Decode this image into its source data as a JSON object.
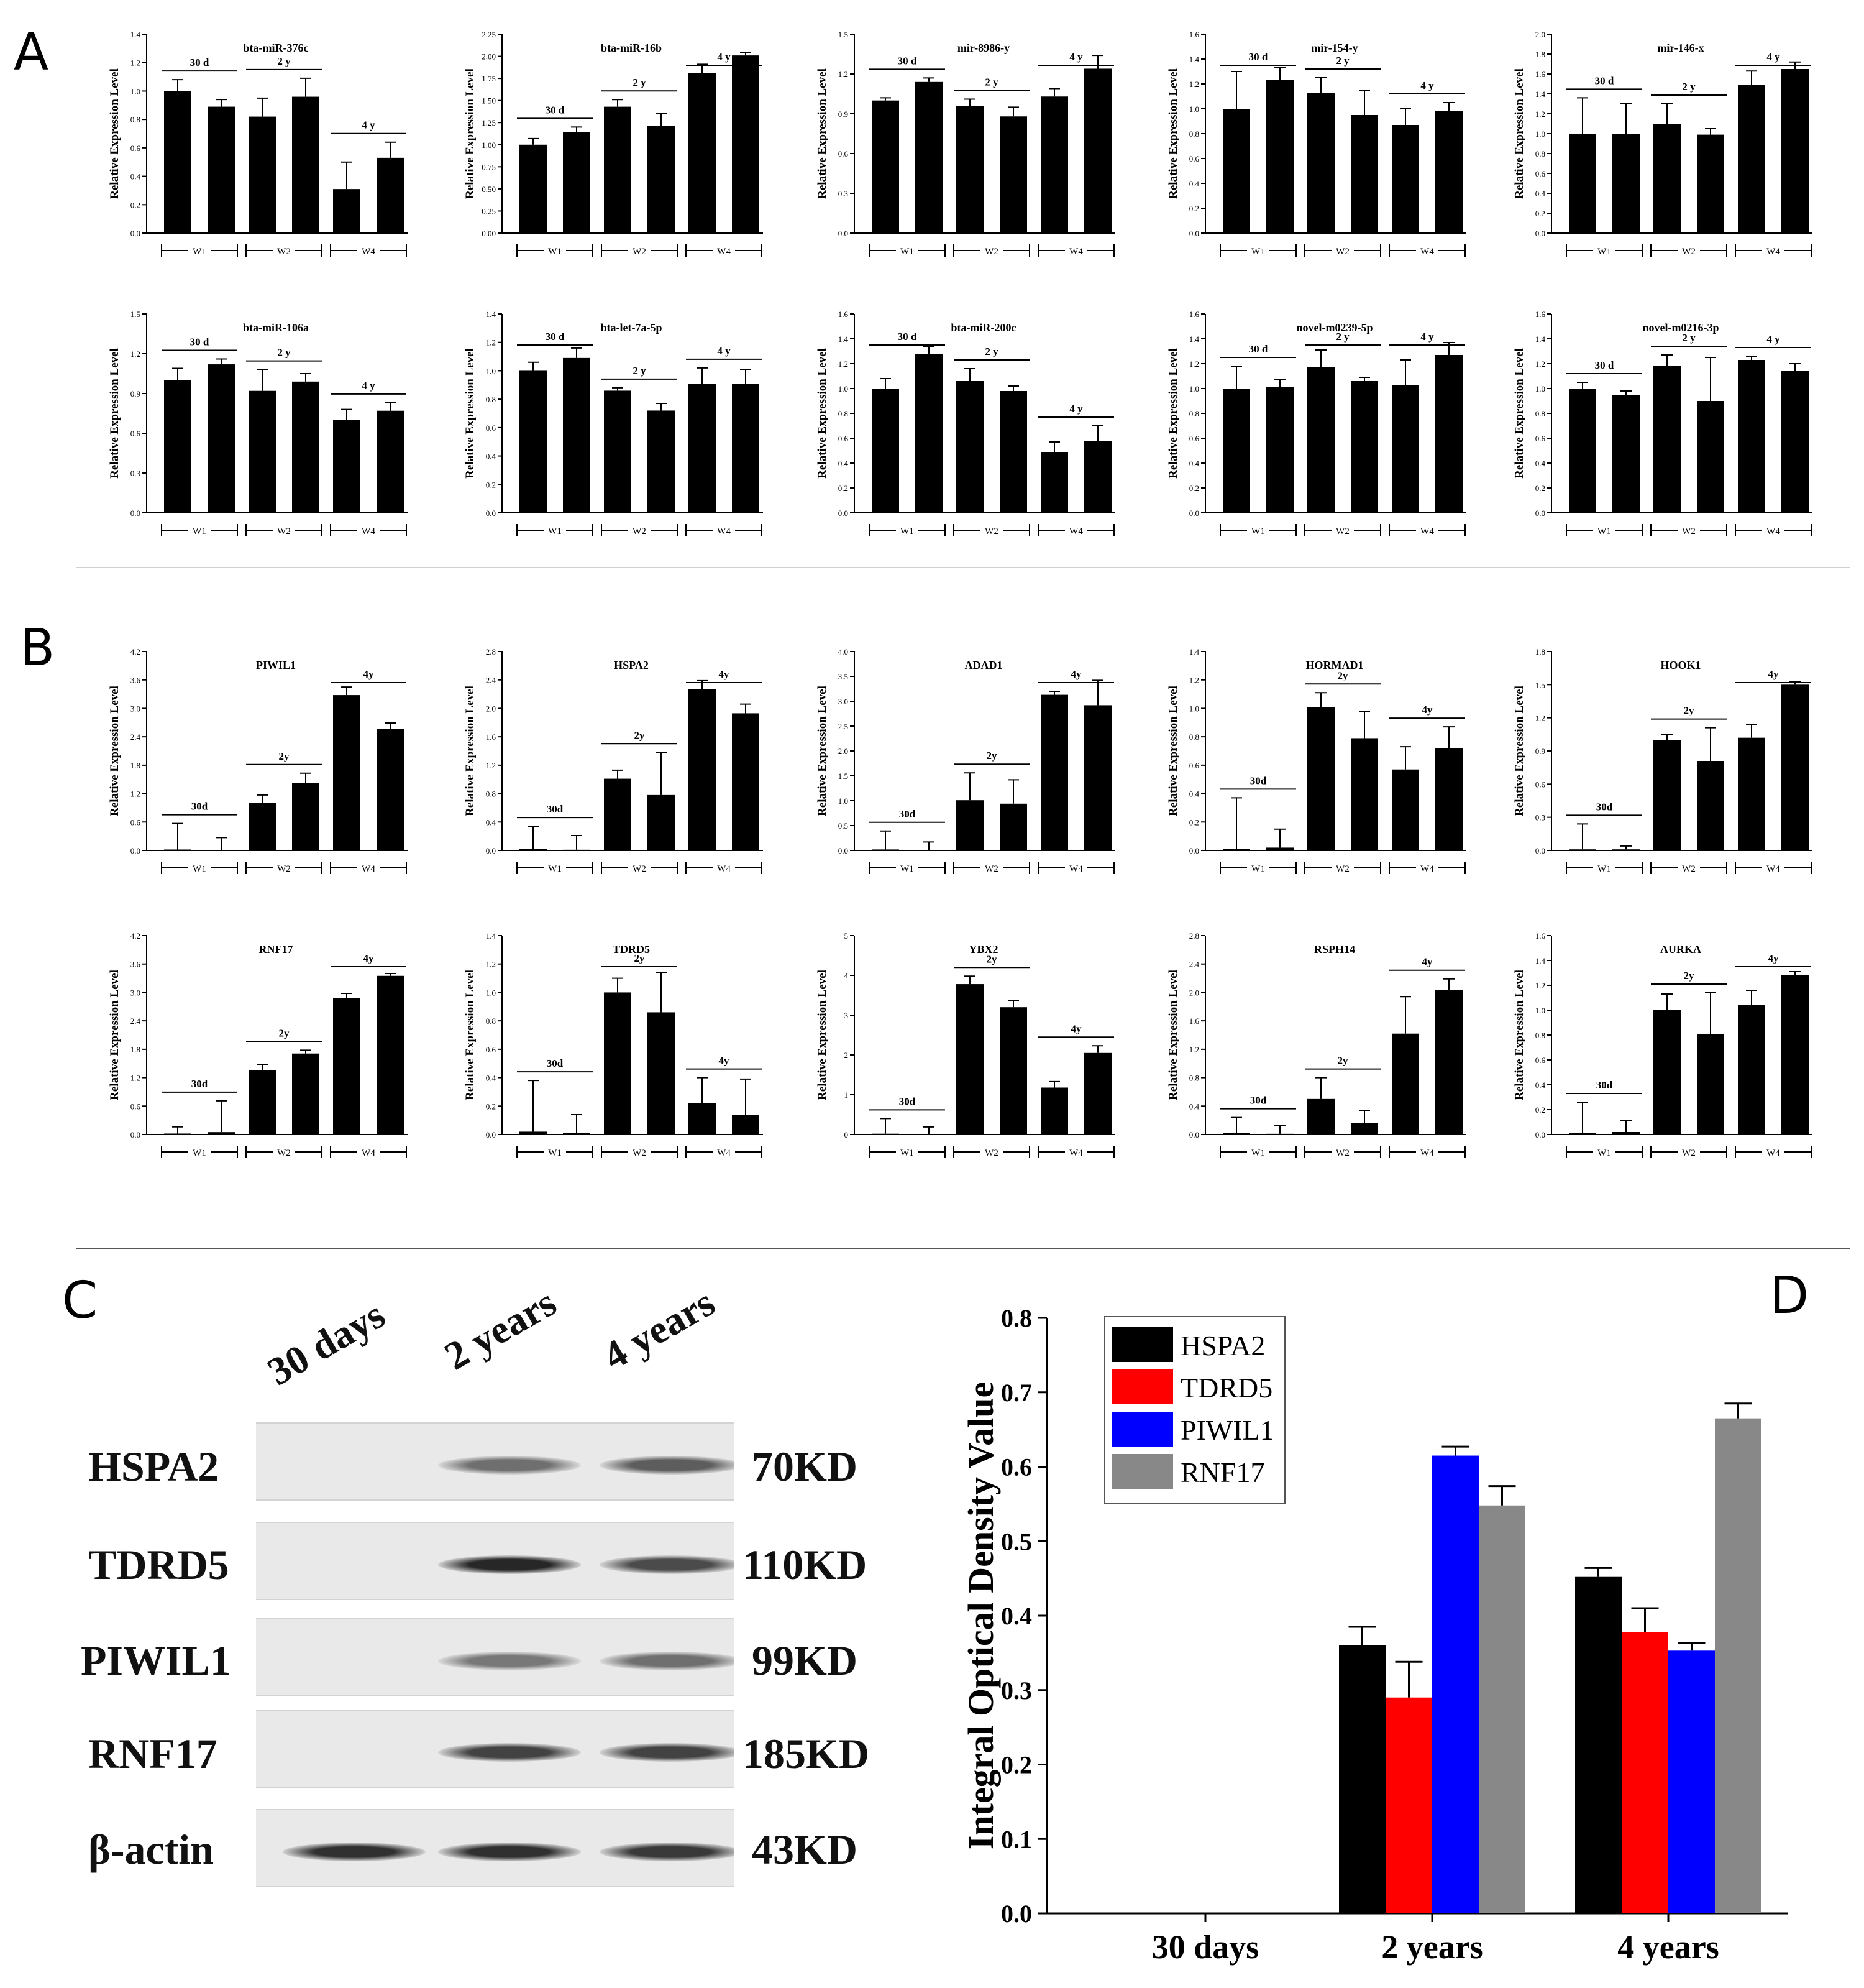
{
  "panels": {
    "a": "A",
    "b": "B",
    "c": "C",
    "d": "D"
  },
  "axis_ylabel": "Relative Expression Level",
  "chart_data": [
    {
      "type": "bar",
      "name": "bta-miR-376c",
      "title": "bta-miR-376c",
      "values": [
        1.0,
        0.89,
        0.82,
        0.96,
        0.31,
        0.53
      ],
      "errors": [
        0.08,
        0.05,
        0.13,
        0.13,
        0.19,
        0.11
      ],
      "ylim": [
        0,
        1.4
      ],
      "yticks": [
        "0.0",
        "0.2",
        "0.4",
        "0.6",
        "0.8",
        "1.0",
        "1.2",
        "1.4"
      ],
      "groups": [
        "30 d",
        "2 y",
        "4 y"
      ],
      "weeks": [
        "W1",
        "W2",
        "W4"
      ]
    },
    {
      "type": "bar",
      "name": "bta-miR-16b",
      "title": "bta-miR-16b",
      "values": [
        1.0,
        1.14,
        1.43,
        1.21,
        1.81,
        2.01
      ],
      "errors": [
        0.07,
        0.06,
        0.08,
        0.14,
        0.1,
        0.03
      ],
      "ylim": [
        0,
        2.25
      ],
      "yticks": [
        "0.00",
        "0.25",
        "0.50",
        "0.75",
        "1.00",
        "1.25",
        "1.50",
        "1.75",
        "2.00",
        "2.25"
      ],
      "groups": [
        "30 d",
        "2 y",
        "4 y"
      ],
      "weeks": [
        "W1",
        "W2",
        "W4"
      ]
    },
    {
      "type": "bar",
      "name": "mir-8986-y",
      "title": "mir-8986-y",
      "values": [
        1.0,
        1.14,
        0.96,
        0.88,
        1.03,
        1.24
      ],
      "errors": [
        0.02,
        0.03,
        0.05,
        0.07,
        0.06,
        0.1
      ],
      "ylim": [
        0,
        1.5
      ],
      "yticks": [
        "0.0",
        "0.3",
        "0.6",
        "0.9",
        "1.2",
        "1.5"
      ],
      "groups": [
        "30 d",
        "2 y",
        "4 y"
      ],
      "weeks": [
        "W1",
        "W2",
        "W4"
      ]
    },
    {
      "type": "bar",
      "name": "mir-154-y",
      "title": "mir-154-y",
      "values": [
        1.0,
        1.23,
        1.13,
        0.95,
        0.87,
        0.98
      ],
      "errors": [
        0.3,
        0.1,
        0.12,
        0.2,
        0.13,
        0.07
      ],
      "ylim": [
        0,
        1.6
      ],
      "yticks": [
        "0.0",
        "0.2",
        "0.4",
        "0.6",
        "0.8",
        "1.0",
        "1.2",
        "1.4",
        "1.6"
      ],
      "groups": [
        "30 d",
        "2 y",
        "4 y"
      ],
      "weeks": [
        "W1",
        "W2",
        "W4"
      ]
    },
    {
      "type": "bar",
      "name": "mir-146-x",
      "title": "mir-146-x",
      "values": [
        1.0,
        1.0,
        1.1,
        0.99,
        1.49,
        1.65
      ],
      "errors": [
        0.36,
        0.3,
        0.2,
        0.06,
        0.14,
        0.07
      ],
      "ylim": [
        0,
        2.0
      ],
      "yticks": [
        "0.0",
        "0.2",
        "0.4",
        "0.6",
        "0.8",
        "1.0",
        "1.2",
        "1.4",
        "1.6",
        "1.8",
        "2.0"
      ],
      "groups": [
        "30 d",
        "2 y",
        "4 y"
      ],
      "weeks": [
        "W1",
        "W2",
        "W4"
      ]
    },
    {
      "type": "bar",
      "name": "bta-miR-106a",
      "title": "bta-miR-106a",
      "values": [
        1.0,
        1.12,
        0.92,
        0.99,
        0.7,
        0.77
      ],
      "errors": [
        0.09,
        0.04,
        0.16,
        0.06,
        0.08,
        0.06
      ],
      "ylim": [
        0,
        1.5
      ],
      "yticks": [
        "0.0",
        "0.3",
        "0.6",
        "0.9",
        "1.2",
        "1.5"
      ],
      "groups": [
        "30 d",
        "2 y",
        "4 y"
      ],
      "weeks": [
        "W1",
        "W2",
        "W4"
      ]
    },
    {
      "type": "bar",
      "name": "bta-let-7a-5p",
      "title": "bta-let-7a-5p",
      "values": [
        1.0,
        1.09,
        0.86,
        0.72,
        0.91,
        0.91
      ],
      "errors": [
        0.06,
        0.07,
        0.02,
        0.05,
        0.11,
        0.1
      ],
      "ylim": [
        0,
        1.4
      ],
      "yticks": [
        "0.0",
        "0.2",
        "0.4",
        "0.6",
        "0.8",
        "1.0",
        "1.2",
        "1.4"
      ],
      "groups": [
        "30 d",
        "2 y",
        "4 y"
      ],
      "weeks": [
        "W1",
        "W2",
        "W4"
      ]
    },
    {
      "type": "bar",
      "name": "bta-miR-200c",
      "title": "bta-miR-200c",
      "values": [
        1.0,
        1.28,
        1.06,
        0.98,
        0.49,
        0.58
      ],
      "errors": [
        0.08,
        0.06,
        0.1,
        0.04,
        0.08,
        0.12
      ],
      "ylim": [
        0,
        1.6
      ],
      "yticks": [
        "0.0",
        "0.2",
        "0.4",
        "0.6",
        "0.8",
        "1.0",
        "1.2",
        "1.4",
        "1.6"
      ],
      "groups": [
        "30 d",
        "2 y",
        "4 y"
      ],
      "weeks": [
        "W1",
        "W2",
        "W4"
      ]
    },
    {
      "type": "bar",
      "name": "novel-m0239-5p",
      "title": "novel-m0239-5p",
      "values": [
        1.0,
        1.01,
        1.17,
        1.06,
        1.03,
        1.27
      ],
      "errors": [
        0.18,
        0.06,
        0.14,
        0.03,
        0.2,
        0.1
      ],
      "ylim": [
        0,
        1.6
      ],
      "yticks": [
        "0.0",
        "0.2",
        "0.4",
        "0.6",
        "0.8",
        "1.0",
        "1.2",
        "1.4",
        "1.6"
      ],
      "groups": [
        "30 d",
        "2 y",
        "4 y"
      ],
      "weeks": [
        "W1",
        "W2",
        "W4"
      ]
    },
    {
      "type": "bar",
      "name": "novel-m0216-3p",
      "title": "novel-m0216-3p",
      "values": [
        1.0,
        0.95,
        1.18,
        0.9,
        1.23,
        1.14
      ],
      "errors": [
        0.05,
        0.03,
        0.09,
        0.35,
        0.03,
        0.06
      ],
      "ylim": [
        0,
        1.6
      ],
      "yticks": [
        "0.0",
        "0.2",
        "0.4",
        "0.6",
        "0.8",
        "1.0",
        "1.2",
        "1.4",
        "1.6"
      ],
      "groups": [
        "30 d",
        "2 y",
        "4 y"
      ],
      "weeks": [
        "W1",
        "W2",
        "W4"
      ]
    },
    {
      "type": "bar",
      "name": "PIWIL1",
      "title": "PIWIL1",
      "values": [
        0.02,
        0.01,
        1.01,
        1.43,
        3.28,
        2.57
      ],
      "errors": [
        0.55,
        0.26,
        0.16,
        0.2,
        0.17,
        0.12
      ],
      "ylim": [
        0,
        4.2
      ],
      "yticks": [
        "0.0",
        "0.6",
        "1.2",
        "1.8",
        "2.4",
        "3.0",
        "3.6",
        "4.2"
      ],
      "groups": [
        "30d",
        "2y",
        "4y"
      ],
      "weeks": [
        "W1",
        "W2",
        "W4"
      ]
    },
    {
      "type": "bar",
      "name": "HSPA2",
      "title": "HSPA2",
      "values": [
        0.02,
        0.01,
        1.01,
        0.78,
        2.27,
        1.93
      ],
      "errors": [
        0.32,
        0.2,
        0.12,
        0.6,
        0.12,
        0.13
      ],
      "ylim": [
        0,
        2.8
      ],
      "yticks": [
        "0.0",
        "0.4",
        "0.8",
        "1.2",
        "1.6",
        "2.0",
        "2.4",
        "2.8"
      ],
      "groups": [
        "30d",
        "2y",
        "4y"
      ],
      "weeks": [
        "W1",
        "W2",
        "W4"
      ]
    },
    {
      "type": "bar",
      "name": "ADAD1",
      "title": "ADAD1",
      "values": [
        0.02,
        0.01,
        1.01,
        0.94,
        3.13,
        2.92
      ],
      "errors": [
        0.37,
        0.16,
        0.55,
        0.48,
        0.07,
        0.5
      ],
      "ylim": [
        0,
        4.0
      ],
      "yticks": [
        "0.0",
        "0.5",
        "1.0",
        "1.5",
        "2.0",
        "2.5",
        "3.0",
        "3.5",
        "4.0"
      ],
      "groups": [
        "30d",
        "2y",
        "4y"
      ],
      "weeks": [
        "W1",
        "W2",
        "W4"
      ]
    },
    {
      "type": "bar",
      "name": "HORMAD1",
      "title": "HORMAD1",
      "values": [
        0.01,
        0.02,
        1.01,
        0.79,
        0.57,
        0.72
      ],
      "errors": [
        0.36,
        0.13,
        0.1,
        0.19,
        0.16,
        0.15
      ],
      "ylim": [
        0,
        1.4
      ],
      "yticks": [
        "0.0",
        "0.2",
        "0.4",
        "0.6",
        "0.8",
        "1.0",
        "1.2",
        "1.4"
      ],
      "groups": [
        "30d",
        "2y",
        "4y"
      ],
      "weeks": [
        "W1",
        "W2",
        "W4"
      ]
    },
    {
      "type": "bar",
      "name": "HOOK1",
      "title": "HOOK1",
      "values": [
        0.01,
        0.01,
        1.0,
        0.81,
        1.02,
        1.5
      ],
      "errors": [
        0.23,
        0.03,
        0.05,
        0.3,
        0.12,
        0.03
      ],
      "ylim": [
        0,
        1.8
      ],
      "yticks": [
        "0.0",
        "0.3",
        "0.6",
        "0.9",
        "1.2",
        "1.5",
        "1.8"
      ],
      "groups": [
        "30d",
        "2y",
        "4y"
      ],
      "weeks": [
        "W1",
        "W2",
        "W4"
      ]
    },
    {
      "type": "bar",
      "name": "RNF17",
      "title": "RNF17",
      "values": [
        0.02,
        0.05,
        1.36,
        1.71,
        2.88,
        3.35
      ],
      "errors": [
        0.14,
        0.66,
        0.12,
        0.07,
        0.1,
        0.05
      ],
      "ylim": [
        0,
        4.2
      ],
      "yticks": [
        "0.0",
        "0.6",
        "1.2",
        "1.8",
        "2.4",
        "3.0",
        "3.6",
        "4.2"
      ],
      "groups": [
        "30d",
        "2y",
        "4y"
      ],
      "weeks": [
        "W1",
        "W2",
        "W4"
      ]
    },
    {
      "type": "bar",
      "name": "TDRD5",
      "title": "TDRD5",
      "values": [
        0.02,
        0.01,
        1.0,
        0.86,
        0.22,
        0.14
      ],
      "errors": [
        0.36,
        0.13,
        0.1,
        0.28,
        0.18,
        0.25
      ],
      "ylim": [
        0,
        1.4
      ],
      "yticks": [
        "0.0",
        "0.2",
        "0.4",
        "0.6",
        "0.8",
        "1.0",
        "1.2",
        "1.4"
      ],
      "groups": [
        "30d",
        "2y",
        "4y"
      ],
      "weeks": [
        "W1",
        "W2",
        "W4"
      ]
    },
    {
      "type": "bar",
      "name": "YBX2",
      "title": "YBX2",
      "values": [
        0.02,
        0.01,
        3.78,
        3.2,
        1.18,
        2.05
      ],
      "errors": [
        0.38,
        0.18,
        0.2,
        0.17,
        0.15,
        0.18
      ],
      "ylim": [
        0,
        5
      ],
      "yticks": [
        "0",
        "1",
        "2",
        "3",
        "4",
        "5"
      ],
      "groups": [
        "30d",
        "2y",
        "4y"
      ],
      "weeks": [
        "W1",
        "W2",
        "W4"
      ]
    },
    {
      "type": "bar",
      "name": "RSPH14",
      "title": "RSPH14",
      "values": [
        0.02,
        0.01,
        0.5,
        0.16,
        1.42,
        2.03
      ],
      "errors": [
        0.22,
        0.12,
        0.3,
        0.18,
        0.52,
        0.16
      ],
      "ylim": [
        0,
        2.8
      ],
      "yticks": [
        "0.0",
        "0.4",
        "0.8",
        "1.2",
        "1.6",
        "2.0",
        "2.4",
        "2.8"
      ],
      "groups": [
        "30d",
        "2y",
        "4y"
      ],
      "weeks": [
        "W1",
        "W2",
        "W4"
      ]
    },
    {
      "type": "bar",
      "name": "AURKA",
      "title": "AURKA",
      "values": [
        0.01,
        0.02,
        1.0,
        0.81,
        1.04,
        1.28
      ],
      "errors": [
        0.25,
        0.09,
        0.13,
        0.33,
        0.12,
        0.03
      ],
      "ylim": [
        0,
        1.6
      ],
      "yticks": [
        "0.0",
        "0.2",
        "0.4",
        "0.6",
        "0.8",
        "1.0",
        "1.2",
        "1.4",
        "1.6"
      ],
      "groups": [
        "30d",
        "2y",
        "4y"
      ],
      "weeks": [
        "W1",
        "W2",
        "W4"
      ]
    },
    {
      "type": "bar",
      "name": "IOD",
      "title": "",
      "ylabel": "Integral Optical Density Value",
      "categories": [
        "30 days",
        "2 years",
        "4 years"
      ],
      "ylim": [
        0,
        0.8
      ],
      "yticks": [
        "0.0",
        "0.1",
        "0.2",
        "0.3",
        "0.4",
        "0.5",
        "0.6",
        "0.7",
        "0.8"
      ],
      "legend": "top-left",
      "series": [
        {
          "name": "HSPA2",
          "color": "#000000",
          "values": [
            0,
            0.36,
            0.452
          ],
          "errors": [
            0,
            0.025,
            0.012
          ]
        },
        {
          "name": "TDRD5",
          "color": "#ff0000",
          "values": [
            0,
            0.29,
            0.378
          ],
          "errors": [
            0,
            0.048,
            0.032
          ]
        },
        {
          "name": "PIWIL1",
          "color": "#0000ff",
          "values": [
            0,
            0.615,
            0.353
          ],
          "errors": [
            0,
            0.012,
            0.01
          ]
        },
        {
          "name": "RNF17",
          "color": "#888888",
          "values": [
            0,
            0.548,
            0.665
          ],
          "errors": [
            0,
            0.026,
            0.02
          ]
        }
      ]
    }
  ],
  "blot": {
    "columns": [
      "30 days",
      "2 years",
      "4 years"
    ],
    "rows": [
      {
        "name": "HSPA2",
        "kd": "70KD",
        "intensity": [
          0,
          0.55,
          0.65
        ]
      },
      {
        "name": "TDRD5",
        "kd": "110KD",
        "intensity": [
          0,
          0.95,
          0.75
        ]
      },
      {
        "name": "PIWIL1",
        "kd": "99KD",
        "intensity": [
          0,
          0.5,
          0.55
        ]
      },
      {
        "name": "RNF17",
        "kd": "185KD",
        "intensity": [
          0,
          0.8,
          0.8
        ]
      },
      {
        "name": "β-actin",
        "kd": "43KD",
        "intensity": [
          0.9,
          0.9,
          0.85
        ]
      }
    ]
  }
}
